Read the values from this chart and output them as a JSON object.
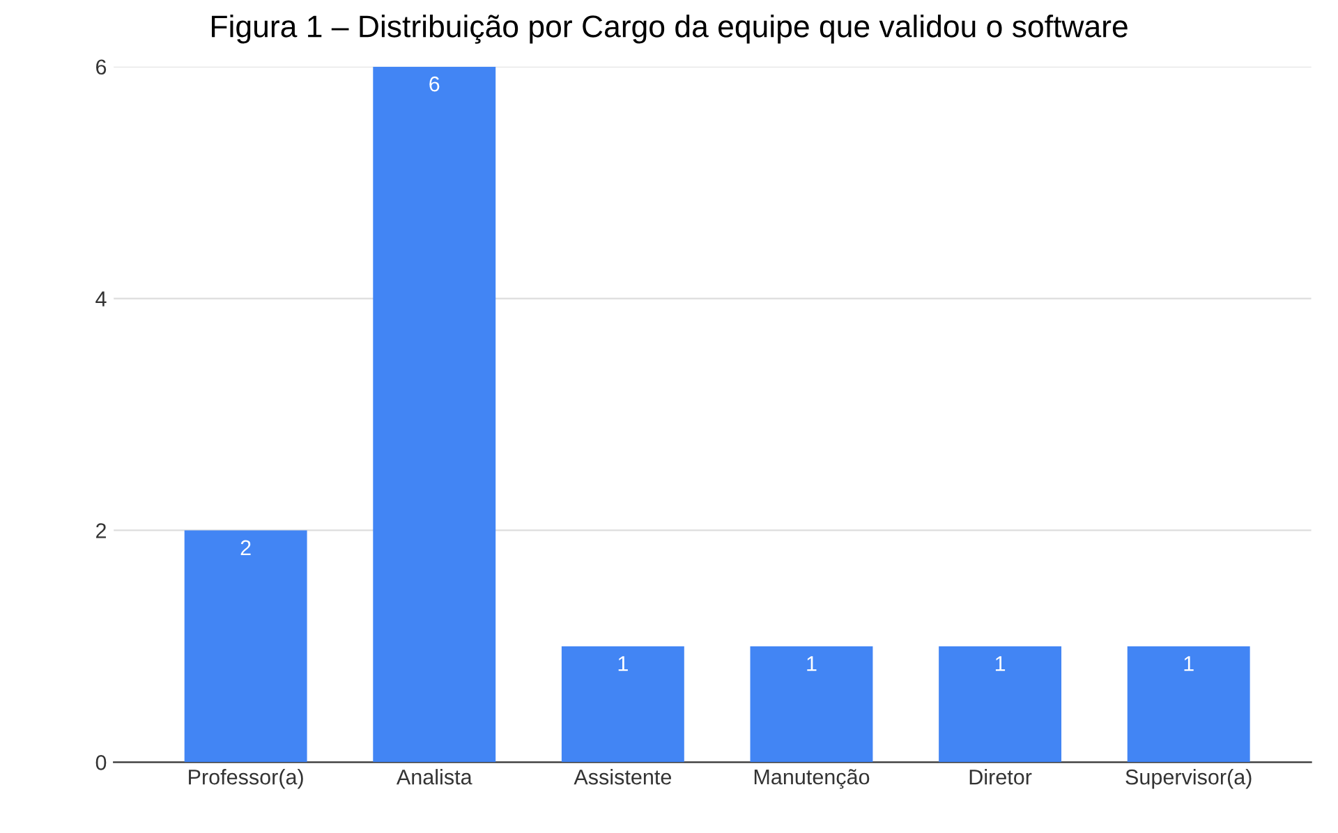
{
  "chart_data": {
    "type": "bar",
    "title": "Figura 1 – Distribuição por Cargo da equipe que validou o software",
    "categories": [
      "Professor(a)",
      "Analista",
      "Assistente",
      "Manutenção",
      "Diretor",
      "Supervisor(a)"
    ],
    "values": [
      2,
      6,
      1,
      1,
      1,
      1
    ],
    "color": "#4285f4",
    "ylim": [
      0,
      6
    ],
    "yticks": [
      0,
      2,
      4,
      6
    ],
    "grid": "y",
    "data_labels": true,
    "legend": false
  }
}
